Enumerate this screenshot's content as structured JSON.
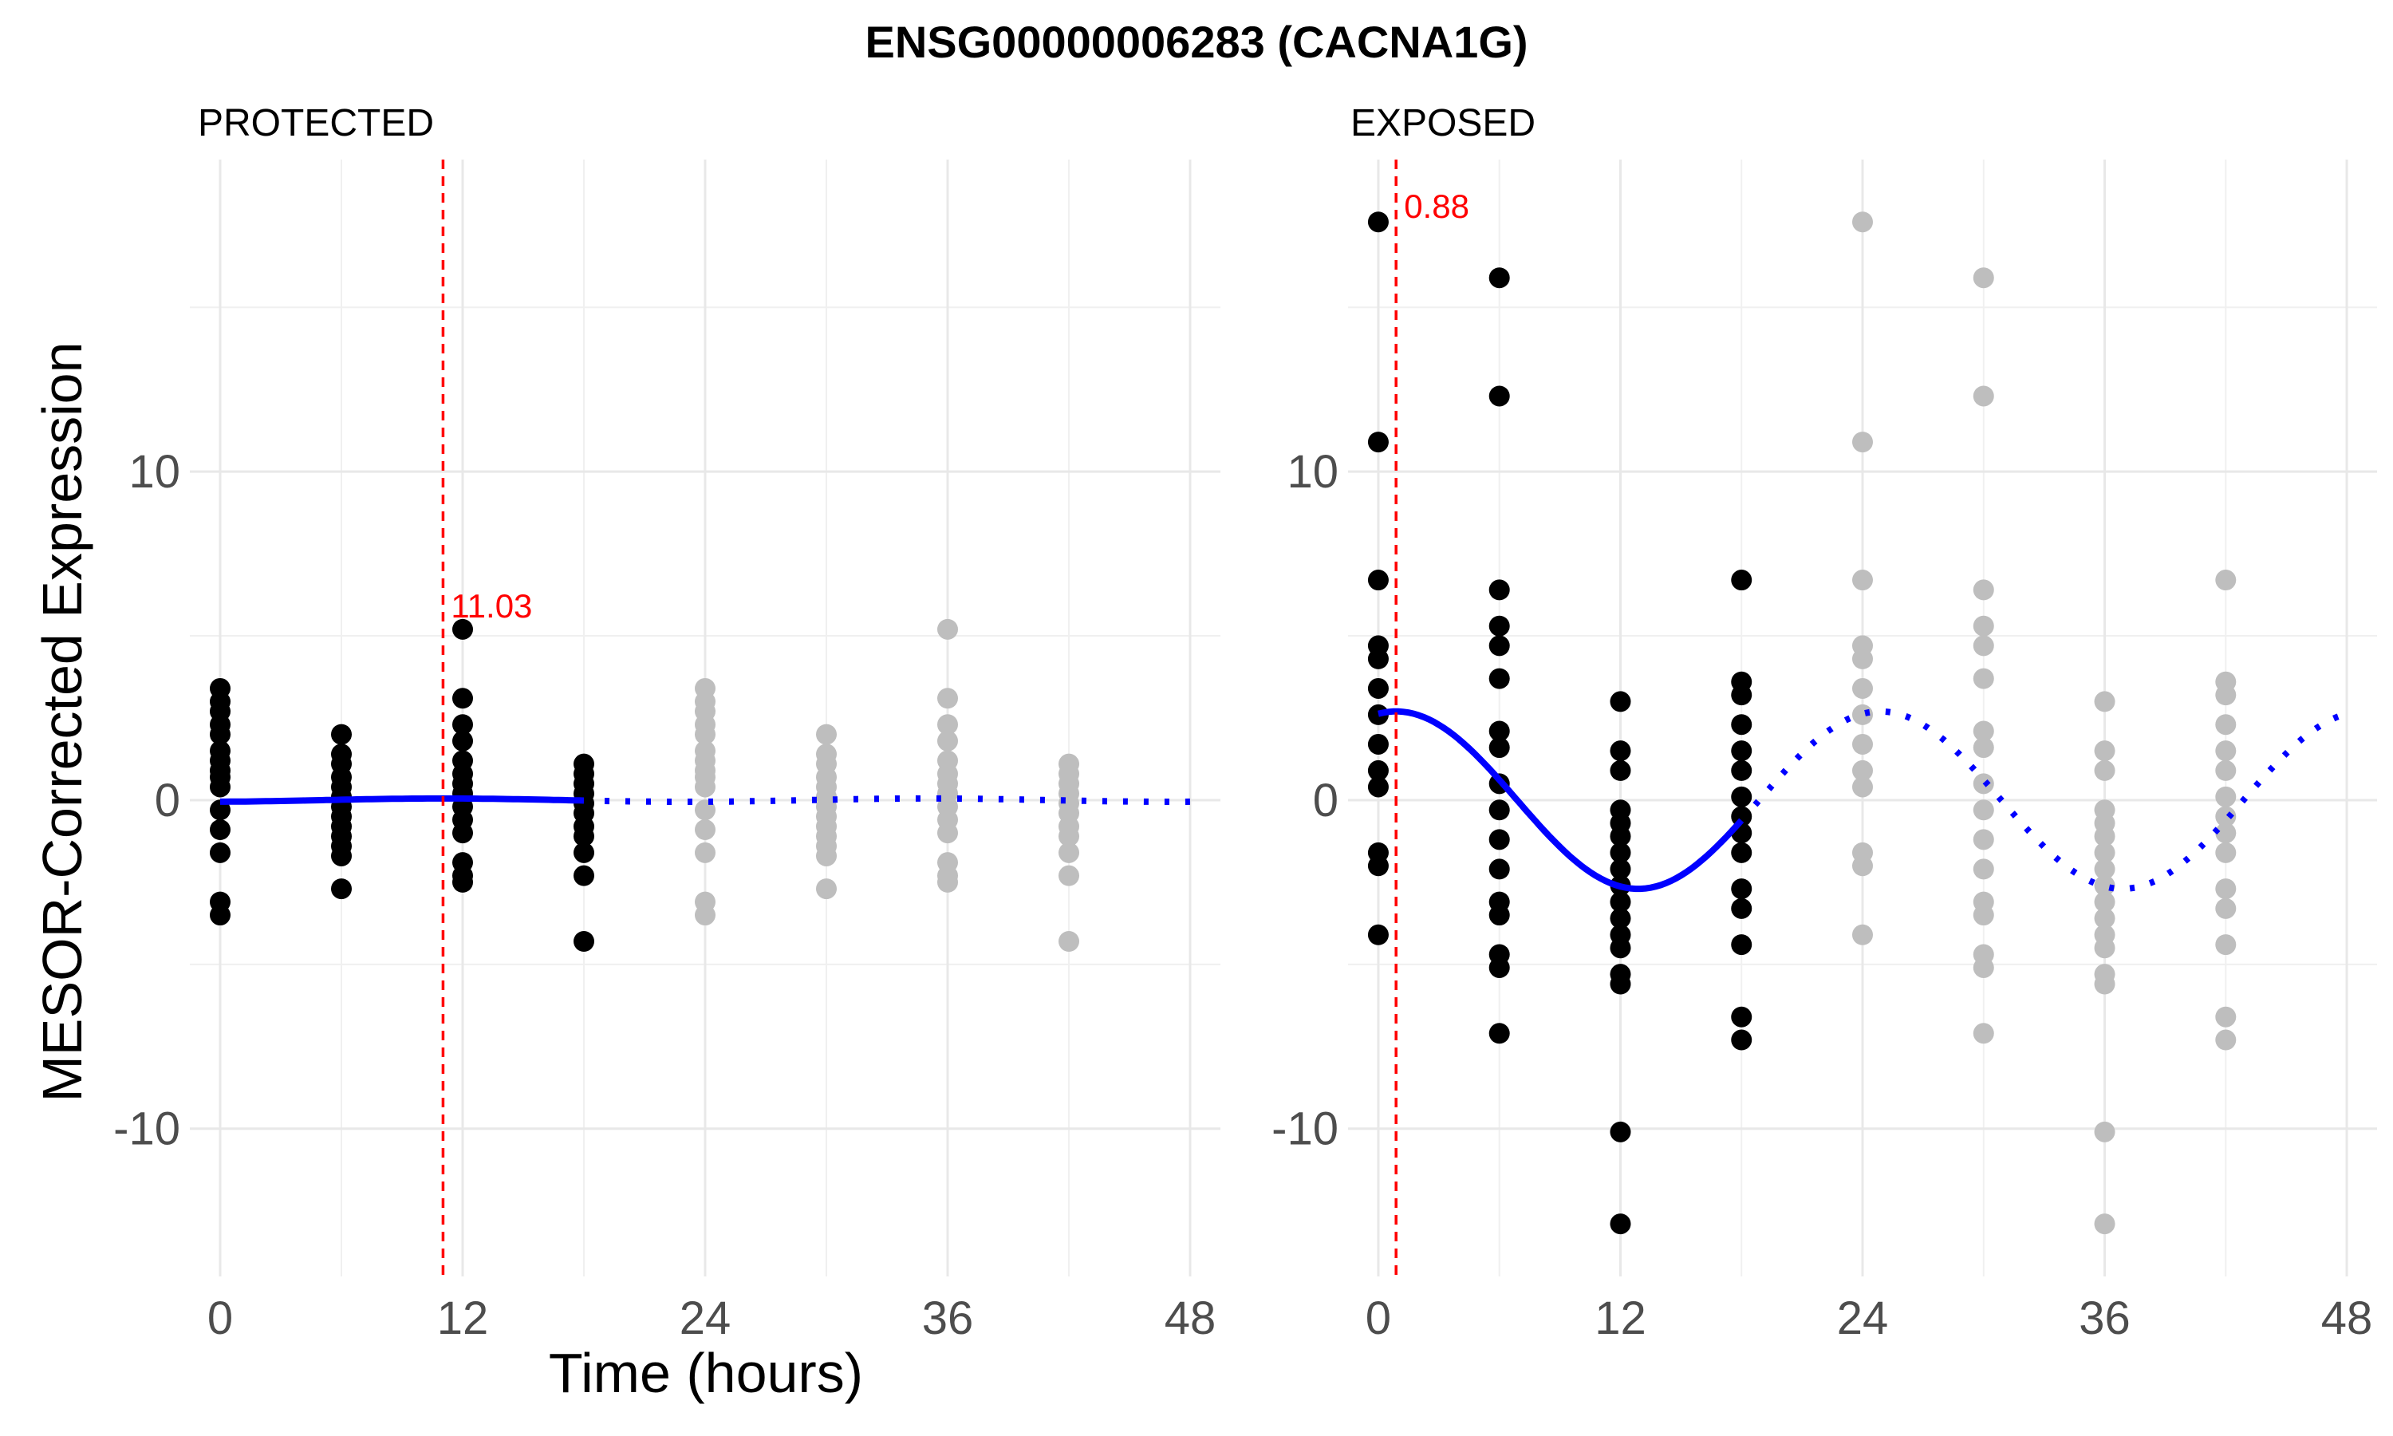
{
  "chart_data": {
    "type": "scatter",
    "title": "ENSG00000006283 (CACNA1G)",
    "xlabel": "Time (hours)",
    "ylabel": "MESOR-Corrected Expression",
    "xlim": [
      -1.5,
      49.5
    ],
    "ylim": [
      -14.5,
      19.5
    ],
    "x_ticks": [
      0,
      12,
      24,
      36,
      48
    ],
    "y_ticks": [
      -10,
      0,
      10
    ],
    "grid": true,
    "colors": {
      "observed_points": "#000000",
      "replicated_points": "#bebebe",
      "fit_line": "#0000ff",
      "peak_line": "#ff0000"
    },
    "panels": [
      {
        "label": "PROTECTED",
        "peak_time": 11.03,
        "peak_label": "11.03",
        "fit": {
          "mesor": 0,
          "amplitude": 0.05,
          "period": 24,
          "acrophase": 11.03
        },
        "points": [
          {
            "t": 0,
            "values": [
              3.4,
              3.0,
              2.7,
              2.3,
              2.0,
              1.5,
              1.2,
              0.9,
              0.7,
              0.4,
              -0.3,
              -0.9,
              -1.6,
              -3.1,
              -3.5
            ]
          },
          {
            "t": 6,
            "values": [
              2.0,
              1.4,
              1.1,
              0.7,
              0.4,
              0.1,
              -0.2,
              -0.5,
              -0.8,
              -1.1,
              -1.4,
              -1.7,
              -2.7
            ]
          },
          {
            "t": 12,
            "values": [
              5.2,
              3.1,
              2.3,
              1.8,
              1.2,
              0.8,
              0.5,
              0.2,
              -0.2,
              -0.6,
              -1.0,
              -1.9,
              -2.3,
              -2.5
            ]
          },
          {
            "t": 18,
            "values": [
              1.1,
              0.8,
              0.5,
              0.2,
              -0.1,
              -0.4,
              -0.8,
              -1.1,
              -1.6,
              -2.3,
              -4.3
            ]
          }
        ]
      },
      {
        "label": "EXPOSED",
        "peak_time": 0.88,
        "peak_label": "0.88",
        "fit": {
          "mesor": 0,
          "amplitude": 2.7,
          "period": 24,
          "acrophase": 0.88
        },
        "points": [
          {
            "t": 0,
            "values": [
              17.6,
              10.9,
              6.7,
              4.7,
              4.3,
              3.4,
              2.6,
              1.7,
              0.9,
              0.4,
              -1.6,
              -2.0,
              -4.1
            ]
          },
          {
            "t": 6,
            "values": [
              15.9,
              12.3,
              6.4,
              5.3,
              4.7,
              3.7,
              2.1,
              1.6,
              0.5,
              -0.3,
              -1.2,
              -2.1,
              -3.1,
              -3.5,
              -4.7,
              -5.1,
              -7.1
            ]
          },
          {
            "t": 12,
            "values": [
              3.0,
              1.5,
              0.9,
              -0.3,
              -0.7,
              -1.1,
              -1.6,
              -2.1,
              -2.6,
              -3.1,
              -3.6,
              -4.1,
              -4.5,
              -5.3,
              -5.6,
              -10.1,
              -12.9
            ]
          },
          {
            "t": 18,
            "values": [
              6.7,
              3.6,
              3.2,
              2.3,
              1.5,
              0.9,
              0.1,
              -0.5,
              -1.0,
              -1.6,
              -2.7,
              -3.3,
              -4.4,
              -6.6,
              -7.3
            ]
          }
        ]
      }
    ]
  }
}
